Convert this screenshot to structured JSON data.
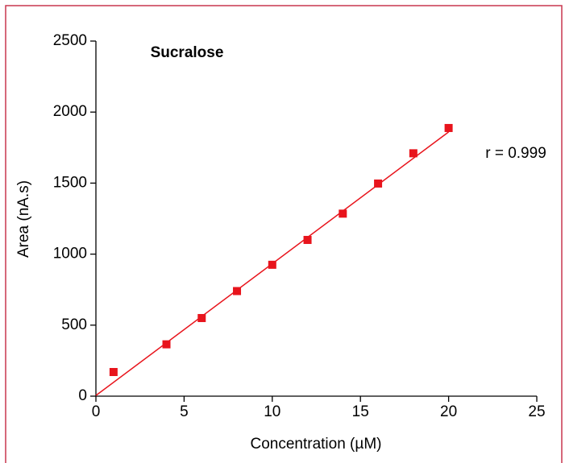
{
  "chart_data": {
    "type": "scatter",
    "title": "Sucralose",
    "x_label": "Concentration (µM)",
    "y_label": "Area (nA.s)",
    "annotation": "r = 0.999",
    "x": [
      1,
      4,
      6,
      8,
      10,
      12,
      14,
      16,
      18,
      20
    ],
    "values": [
      170,
      365,
      550,
      740,
      925,
      1100,
      1285,
      1497,
      1710,
      1888
    ],
    "color": "#e8141c",
    "fit": {
      "x": [
        0,
        20
      ],
      "values": [
        5,
        1860
      ],
      "color": "#e8141c"
    },
    "xlim": [
      0,
      25
    ],
    "xticks": [
      0,
      5,
      10,
      15,
      20,
      25
    ],
    "ylim": [
      0,
      2500
    ],
    "yticks": [
      0,
      500,
      1000,
      1500,
      2000,
      2500
    ],
    "grid": false
  }
}
